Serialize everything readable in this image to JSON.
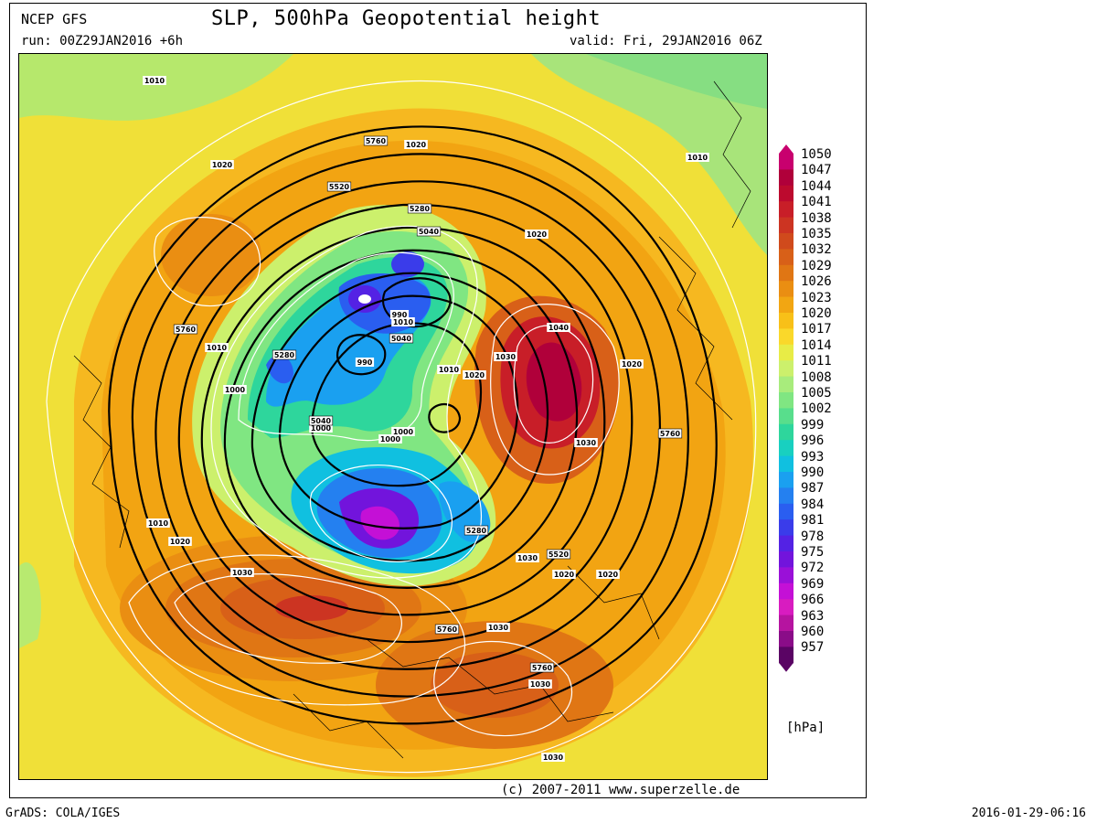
{
  "header": {
    "model": "NCEP GFS",
    "title": "SLP, 500hPa Geopotential height",
    "run": "run: 00Z29JAN2016 +6h",
    "valid": "valid: Fri, 29JAN2016 06Z"
  },
  "footer": {
    "credit": "(c) 2007-2011 www.superzelle.de",
    "software": "GrADS: COLA/IGES",
    "timestamp": "2016-01-29-06:16"
  },
  "legend": {
    "unit": "[hPa]",
    "levels": [
      "1050",
      "1047",
      "1044",
      "1041",
      "1038",
      "1035",
      "1032",
      "1029",
      "1026",
      "1023",
      "1020",
      "1017",
      "1014",
      "1011",
      "1008",
      "1005",
      "1002",
      "999",
      "996",
      "993",
      "990",
      "987",
      "984",
      "981",
      "978",
      "975",
      "972",
      "969",
      "966",
      "963",
      "960",
      "957"
    ],
    "colors": [
      "#c8006e",
      "#b0003a",
      "#bc0a2e",
      "#c81e28",
      "#cc3422",
      "#d04a1c",
      "#d86018",
      "#e07614",
      "#ea8e12",
      "#f2a612",
      "#f8c018",
      "#fad82a",
      "#e8ec46",
      "#ccf06c",
      "#a8ec7c",
      "#80e682",
      "#58de8c",
      "#2ed69c",
      "#18d0c0",
      "#10c0e0",
      "#1aa0f0",
      "#2480f0",
      "#2a5ef0",
      "#3a3cea",
      "#5422e4",
      "#7214dc",
      "#9a10d8",
      "#c410d6",
      "#d81cc0",
      "#b614a0",
      "#8a0c88",
      "#5a0464"
    ]
  },
  "map": {
    "isobar_labels": [
      "1010",
      "1020",
      "1010",
      "1020",
      "1030",
      "1040",
      "1030",
      "1020",
      "1020",
      "1010",
      "1020",
      "1010",
      "1000",
      "990",
      "990",
      "1000",
      "1000",
      "1010",
      "1020",
      "1030",
      "1030",
      "1020",
      "1020",
      "1030",
      "1030",
      "1030",
      "1010",
      "1000"
    ],
    "height_labels": [
      "5760",
      "5520",
      "5280",
      "5040",
      "5040",
      "5280",
      "5760",
      "5280",
      "5040",
      "5520",
      "5760",
      "5760",
      "5760"
    ],
    "low_centers": [
      "990",
      "990"
    ],
    "high_centers": [
      "1040"
    ]
  }
}
